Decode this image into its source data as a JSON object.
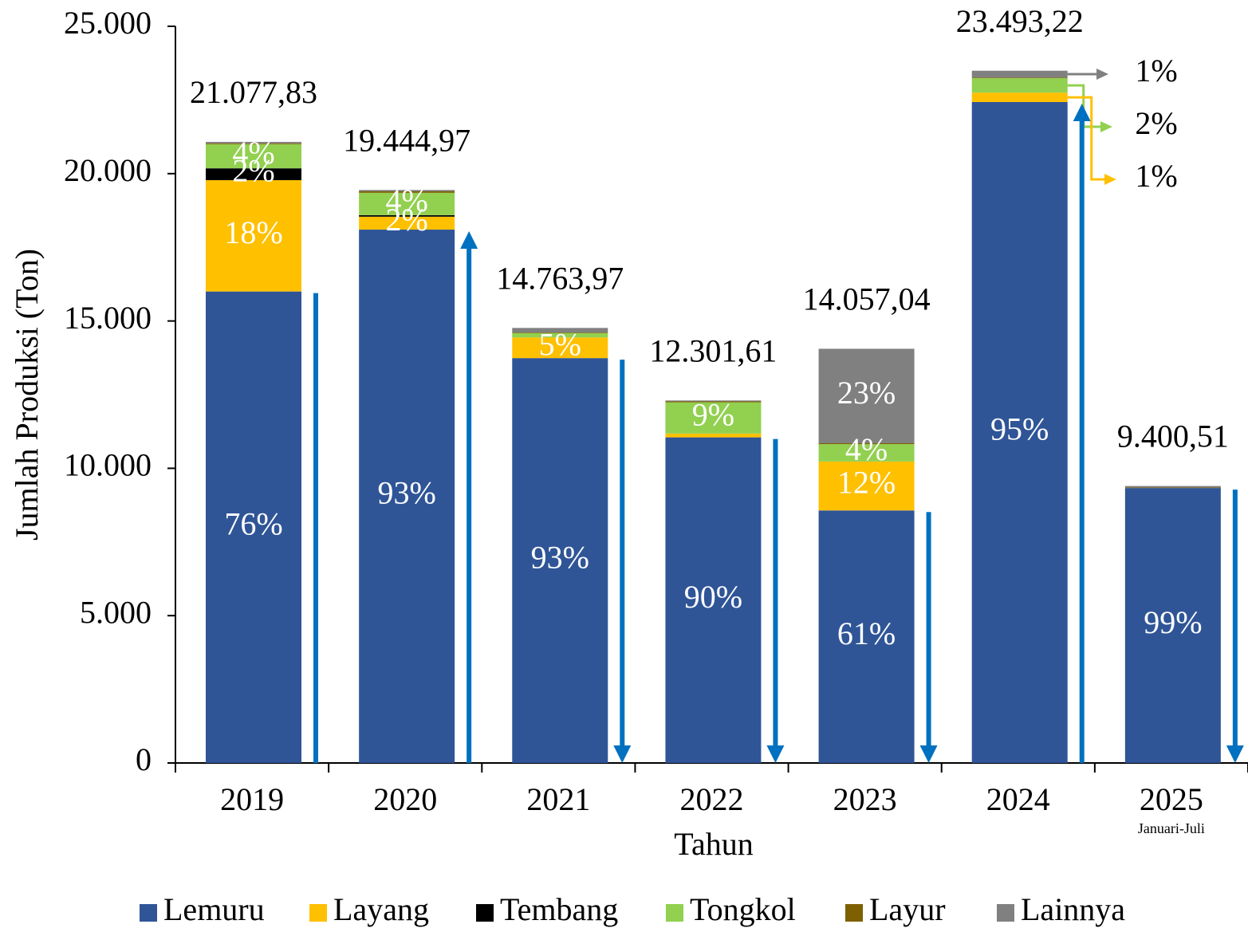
{
  "chart_data": {
    "type": "stacked_bar",
    "x_label": "Tahun",
    "y_label": "Jumlah Produksi (Ton)",
    "categories": [
      "2019",
      "2020",
      "2021",
      "2022",
      "2023",
      "2024",
      "2025"
    ],
    "annotations": [
      {
        "category": 6,
        "text": "Januari-Juli"
      }
    ],
    "totals": [
      21077.83,
      19444.97,
      14763.97,
      12301.61,
      14057.04,
      23493.22,
      9400.51
    ],
    "total_labels": [
      "21.077,83",
      "19.444,97",
      "14.763,97",
      "12.301,61",
      "14.057,04",
      "23.493,22",
      "9.400,51"
    ],
    "series": [
      {
        "name": "Lemuru",
        "color": "#2f5597",
        "values": [
          16000,
          18100,
          13740,
          11050,
          8570,
          22430,
          9330
        ],
        "value_labels": [
          "76%",
          "93%",
          "93%",
          "90%",
          "61%",
          "95%",
          "99%"
        ]
      },
      {
        "name": "Layang",
        "color": "#ffc000",
        "values": [
          3780,
          440,
          700,
          130,
          1660,
          320,
          0
        ],
        "value_labels": [
          "18%",
          "2%",
          "5%",
          null,
          "12%",
          "1%",
          null
        ]
      },
      {
        "name": "Tembang",
        "color": "#000000",
        "values": [
          400,
          50,
          0,
          0,
          0,
          0,
          0
        ],
        "value_labels": [
          "2%",
          null,
          null,
          null,
          null,
          null,
          null
        ]
      },
      {
        "name": "Tongkol",
        "color": "#92d050",
        "values": [
          820,
          760,
          150,
          1060,
          590,
          490,
          0
        ],
        "value_labels": [
          "4%",
          "4%",
          null,
          "9%",
          "4%",
          "2%",
          null
        ]
      },
      {
        "name": "Layur",
        "color": "#7f6000",
        "values": [
          30,
          50,
          20,
          30,
          30,
          20,
          20
        ],
        "value_labels": [
          null,
          null,
          null,
          null,
          null,
          null,
          null
        ]
      },
      {
        "name": "Lainnya",
        "color": "#808080",
        "values": [
          48,
          45,
          154,
          32,
          3207,
          233,
          50
        ],
        "value_labels": [
          null,
          null,
          null,
          null,
          "23%",
          "1%",
          null
        ]
      }
    ],
    "ylim": [
      0,
      25000
    ],
    "yticks": [
      0,
      {
        "value": 5000,
        "label": "5.000"
      },
      {
        "value": 10000,
        "label": "10.000"
      },
      {
        "value": 15000,
        "label": "15.000"
      },
      {
        "value": 20000,
        "label": "20.000"
      },
      {
        "value": 25000,
        "label": "25.000"
      }
    ],
    "legend": "bottom"
  }
}
